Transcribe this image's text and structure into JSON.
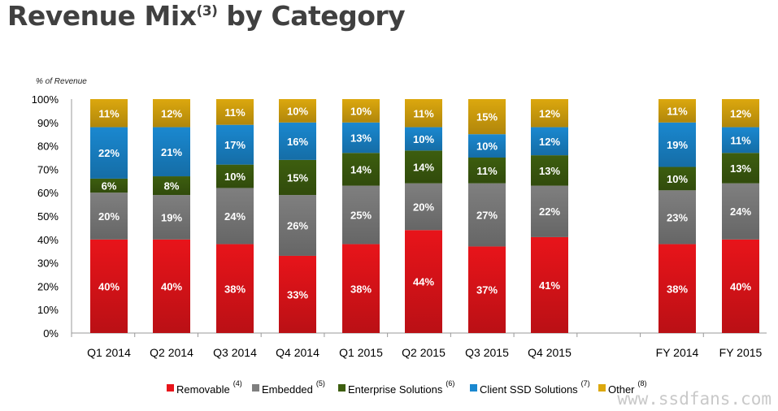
{
  "title": {
    "text": "Revenue Mix",
    "note": "(3)",
    "rest": " by Category"
  },
  "watermark": "www.ssdfans.com",
  "colors": {
    "Removable": "#e8141a",
    "Embedded": "#7f7f7f",
    "Enterprise Solutions": "#3d5e0f",
    "Client SSD Solutions": "#1a88d0",
    "Other": "#dca80e"
  },
  "chart_data": {
    "type": "bar",
    "stacked": true,
    "ylabel": "% of Revenue",
    "ylim": [
      0,
      100
    ],
    "yticks": [
      "0%",
      "10%",
      "20%",
      "30%",
      "40%",
      "50%",
      "60%",
      "70%",
      "80%",
      "90%",
      "100%"
    ],
    "categories": [
      "Q1 2014",
      "Q2 2014",
      "Q3 2014",
      "Q4 2014",
      "Q1 2015",
      "Q2 2015",
      "Q3 2015",
      "Q4 2015",
      "FY 2014",
      "FY 2015"
    ],
    "series": [
      {
        "name": "Removable",
        "note": "(4)",
        "values": [
          40,
          40,
          38,
          33,
          38,
          44,
          37,
          41,
          38,
          40
        ]
      },
      {
        "name": "Embedded",
        "note": "(5)",
        "values": [
          20,
          19,
          24,
          26,
          25,
          20,
          27,
          22,
          23,
          24
        ]
      },
      {
        "name": "Enterprise Solutions",
        "note": "(6)",
        "values": [
          6,
          8,
          10,
          15,
          14,
          14,
          11,
          13,
          10,
          13
        ]
      },
      {
        "name": "Client SSD Solutions",
        "note": "(7)",
        "values": [
          22,
          21,
          17,
          16,
          13,
          10,
          10,
          12,
          19,
          11
        ]
      },
      {
        "name": "Other",
        "note": "(8)",
        "values": [
          11,
          12,
          11,
          10,
          10,
          11,
          15,
          12,
          11,
          12
        ]
      }
    ],
    "legend_position": "bottom",
    "grid": false
  }
}
